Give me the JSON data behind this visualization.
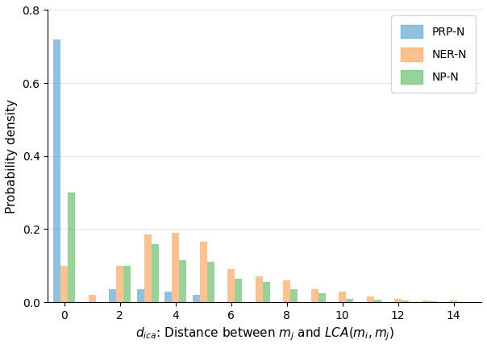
{
  "ylabel": "Probability density",
  "categories": [
    0,
    1,
    2,
    3,
    4,
    5,
    6,
    7,
    8,
    9,
    10,
    11,
    12,
    13,
    14
  ],
  "PRP_N": [
    0.72,
    0.0,
    0.035,
    0.035,
    0.03,
    0.02,
    0.0,
    0.0,
    0.0,
    0.0,
    0.0,
    0.0,
    0.0,
    0.0,
    0.0
  ],
  "NER_N": [
    0.1,
    0.02,
    0.1,
    0.185,
    0.19,
    0.165,
    0.09,
    0.07,
    0.06,
    0.035,
    0.03,
    0.015,
    0.01,
    0.005,
    0.005
  ],
  "NP_N": [
    0.3,
    0.0,
    0.1,
    0.16,
    0.115,
    0.11,
    0.065,
    0.055,
    0.035,
    0.025,
    0.01,
    0.008,
    0.005,
    0.002,
    0.001
  ],
  "colors": {
    "PRP_N": "#6baed6",
    "NER_N": "#fdae6b",
    "NP_N": "#74c476"
  },
  "legend_labels": [
    "PRP-N",
    "NER-N",
    "NP-N"
  ],
  "xlim": [
    -0.6,
    15.0
  ],
  "ylim": [
    0.0,
    0.8
  ],
  "yticks": [
    0.0,
    0.2,
    0.4,
    0.6,
    0.8
  ],
  "xticks": [
    0,
    2,
    4,
    6,
    8,
    10,
    12,
    14
  ],
  "bar_width": 0.26,
  "bar_alpha": 0.75,
  "figsize": [
    6.04,
    4.32
  ],
  "dpi": 100
}
